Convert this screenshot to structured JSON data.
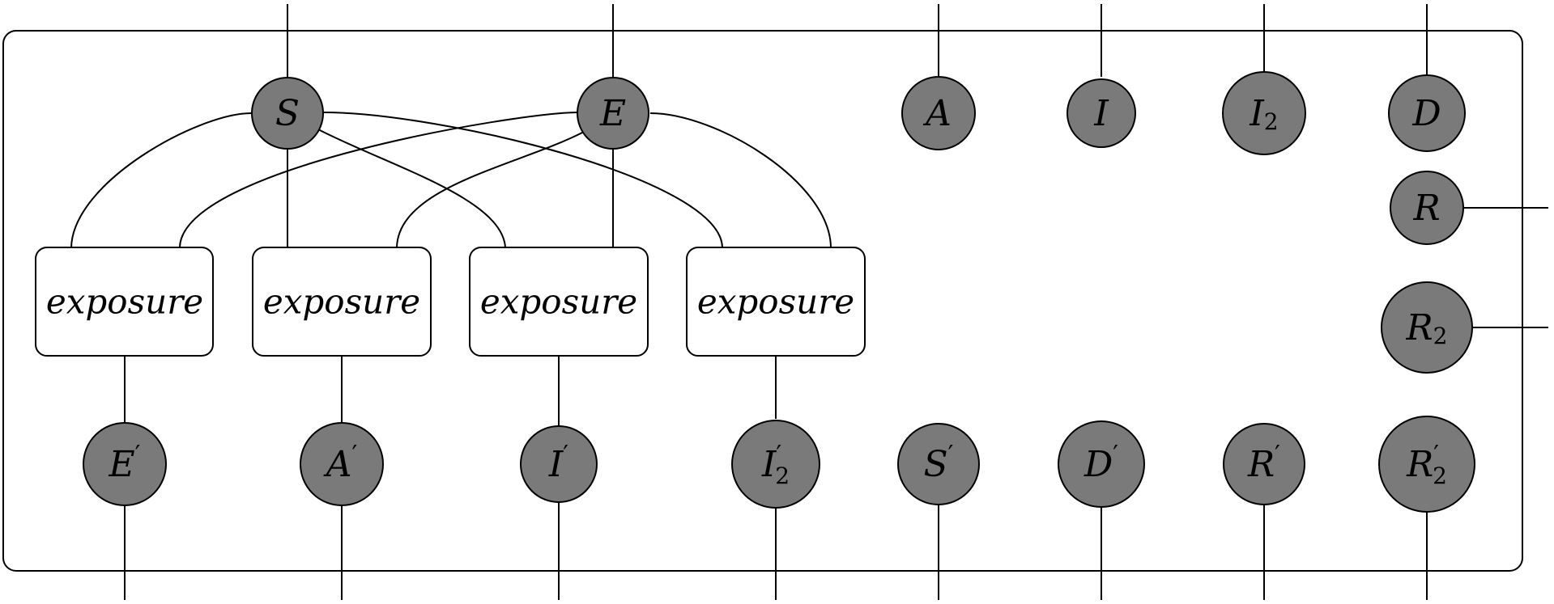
{
  "diagram": {
    "top_nodes": [
      {
        "id": "S",
        "label": "S",
        "sub": "",
        "prime": false
      },
      {
        "id": "E",
        "label": "E",
        "sub": "",
        "prime": false
      },
      {
        "id": "A",
        "label": "A",
        "sub": "",
        "prime": false
      },
      {
        "id": "I",
        "label": "I",
        "sub": "",
        "prime": false
      },
      {
        "id": "I2",
        "label": "I",
        "sub": "2",
        "prime": false
      },
      {
        "id": "D",
        "label": "D",
        "sub": "",
        "prime": false
      }
    ],
    "side_nodes": [
      {
        "id": "R",
        "label": "R",
        "sub": "",
        "prime": false
      },
      {
        "id": "R2",
        "label": "R",
        "sub": "2",
        "prime": false
      }
    ],
    "boxes": [
      {
        "id": "box1",
        "label": "exposure"
      },
      {
        "id": "box2",
        "label": "exposure"
      },
      {
        "id": "box3",
        "label": "exposure"
      },
      {
        "id": "box4",
        "label": "exposure"
      }
    ],
    "bottom_nodes": [
      {
        "id": "Ep",
        "label": "E",
        "sub": "",
        "prime": true
      },
      {
        "id": "Ap",
        "label": "A",
        "sub": "",
        "prime": true
      },
      {
        "id": "Ip",
        "label": "I",
        "sub": "",
        "prime": true
      },
      {
        "id": "I2p",
        "label": "I",
        "sub": "2",
        "prime": true
      },
      {
        "id": "Sp",
        "label": "S",
        "sub": "",
        "prime": true
      },
      {
        "id": "Dp",
        "label": "D",
        "sub": "",
        "prime": true
      },
      {
        "id": "Rp",
        "label": "R",
        "sub": "",
        "prime": true
      },
      {
        "id": "R2p",
        "label": "R",
        "sub": "2",
        "prime": true
      }
    ],
    "connections": [
      {
        "from": "S",
        "to": "box1"
      },
      {
        "from": "S",
        "to": "box2"
      },
      {
        "from": "S",
        "to": "box3"
      },
      {
        "from": "S",
        "to": "box4"
      },
      {
        "from": "E",
        "to": "box1"
      },
      {
        "from": "E",
        "to": "box2"
      },
      {
        "from": "E",
        "to": "box3"
      },
      {
        "from": "E",
        "to": "box4"
      },
      {
        "from": "box1",
        "to": "Ep"
      },
      {
        "from": "box2",
        "to": "Ap"
      },
      {
        "from": "box3",
        "to": "Ip"
      },
      {
        "from": "box4",
        "to": "I2p"
      }
    ]
  }
}
